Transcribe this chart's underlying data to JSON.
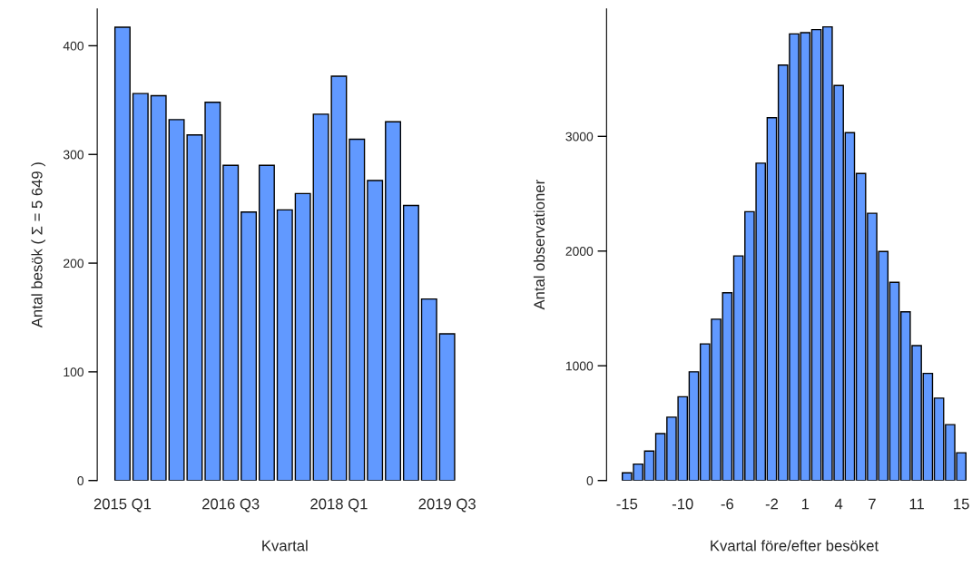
{
  "chart_data": [
    {
      "type": "bar",
      "xlabel": "Kvartal",
      "ylabel": "Antal besök ( Σ = 5 649 )",
      "categories": [
        "2015 Q1",
        null,
        null,
        null,
        null,
        null,
        "2016 Q3",
        null,
        null,
        null,
        null,
        null,
        "2018 Q1",
        null,
        null,
        null,
        null,
        null,
        "2019 Q3"
      ],
      "series": [
        {
          "color": "#6199ff",
          "values": [
            417,
            356,
            354,
            332,
            318,
            348,
            290,
            247,
            290,
            249,
            264,
            337,
            372,
            314,
            276,
            330,
            253,
            167,
            135
          ]
        }
      ],
      "ylim": [
        0,
        434
      ],
      "yticks": [
        0,
        100,
        200,
        300,
        400
      ]
    },
    {
      "type": "bar",
      "xlabel": "Kvartal före/efter besöket",
      "ylabel": "Antal observationer",
      "categories": [
        "-15",
        null,
        null,
        null,
        null,
        "-10",
        null,
        null,
        null,
        "-6",
        null,
        null,
        null,
        "-2",
        null,
        null,
        "1",
        null,
        null,
        "4",
        null,
        null,
        "7",
        null,
        null,
        null,
        "11",
        null,
        null,
        null,
        "15"
      ],
      "series": [
        {
          "color": "#6199ff",
          "values": [
            67,
            143,
            257,
            409,
            552,
            730,
            948,
            1191,
            1406,
            1637,
            1958,
            2343,
            2766,
            3163,
            3621,
            3893,
            3904,
            3931,
            3954,
            3443,
            3032,
            2676,
            2329,
            1996,
            1727,
            1471,
            1176,
            934,
            718,
            487,
            242
          ]
        }
      ],
      "ylim": [
        0,
        4112
      ],
      "yticks": [
        0,
        1000,
        2000,
        3000
      ]
    }
  ]
}
